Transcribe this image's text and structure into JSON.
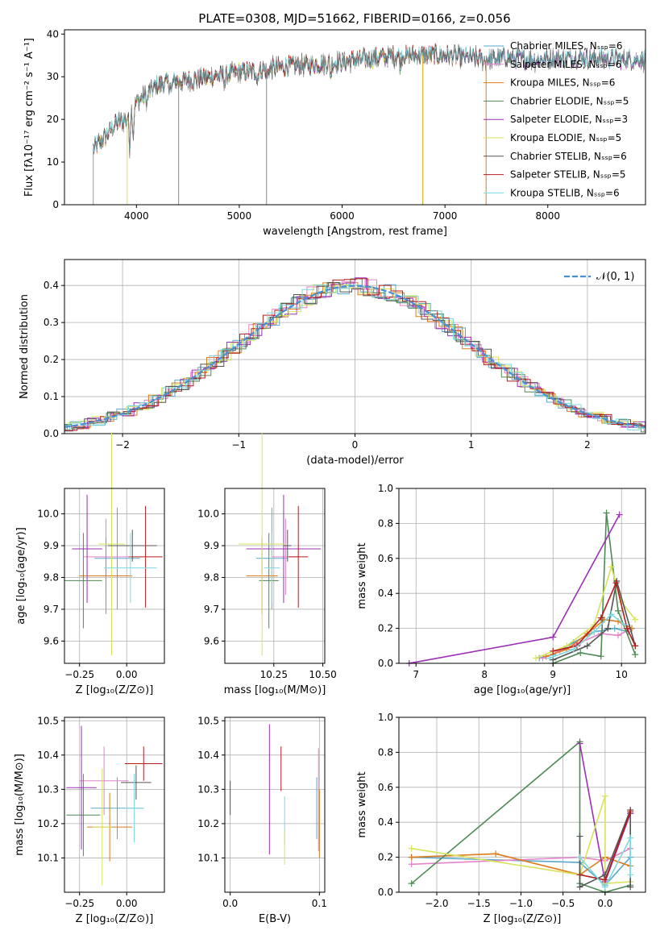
{
  "figure_title": "PLATE=0308, MJD=51662, FIBERID=0166, z=0.056",
  "chart_data": [
    {
      "id": "spectrum",
      "type": "line",
      "title": "PLATE=0308, MJD=51662, FIBERID=0166, z=0.056",
      "xlabel": "wavelength [Angstrom, rest frame]",
      "ylabel": "Flux [fλ10⁻¹⁷ erg cm⁻² s⁻¹ A⁻¹]",
      "xlim": [
        3300,
        8950
      ],
      "ylim": [
        0,
        41
      ],
      "xticks": [
        4000,
        5000,
        6000,
        7000,
        8000
      ],
      "yticks": [
        0,
        10,
        20,
        30,
        40
      ],
      "legend_position": "upper right",
      "series": [
        {
          "name": "Chabrier MILES, N_SSP=6",
          "color": "#5aa9cc"
        },
        {
          "name": "Salpeter MILES, N_SSP=6",
          "color": "#e383c9"
        },
        {
          "name": "Kroupa MILES, N_SSP=6",
          "color": "#e07b1c"
        },
        {
          "name": "Chabrier ELODIE, N_SSP=5",
          "color": "#4e8a55"
        },
        {
          "name": "Salpeter ELODIE, N_SSP=3",
          "color": "#9b30b5"
        },
        {
          "name": "Kroupa ELODIE, N_SSP=5",
          "color": "#d7e35a"
        },
        {
          "name": "Chabrier STELIB, N_SSP=6",
          "color": "#555555"
        },
        {
          "name": "Salpeter STELIB, N_SSP=5",
          "color": "#b41d1d"
        },
        {
          "name": "Kroupa STELIB, N_SSP=6",
          "color": "#7ed8e0"
        }
      ],
      "continuum": {
        "x": [
          3580,
          3700,
          3800,
          3900,
          4000,
          4100,
          4200,
          4400,
          4600,
          5000,
          5500,
          6000,
          6500,
          7000,
          7400,
          7600,
          7800,
          8000,
          8300,
          8600,
          8950
        ],
        "y": [
          13,
          16,
          19,
          20,
          24,
          26,
          28,
          29,
          29.5,
          31,
          32.5,
          33.5,
          35,
          35,
          34,
          34.5,
          34,
          34.2,
          34.5,
          34.2,
          34
        ]
      }
    },
    {
      "id": "residuals",
      "type": "step",
      "xlabel": "(data-model)/error",
      "ylabel": "Normed distribution",
      "xlim": [
        -2.5,
        2.5
      ],
      "ylim": [
        0,
        0.47
      ],
      "xticks": [
        -2,
        -1,
        0,
        1,
        2
      ],
      "yticks": [
        0.0,
        0.1,
        0.2,
        0.3,
        0.4
      ],
      "legend": [
        "𝒩(0, 1)"
      ],
      "gaussian": {
        "name": "N(0,1)",
        "color": "#4a8fd4"
      }
    },
    {
      "id": "age-vs-Z",
      "type": "errorbar",
      "xlabel": "Z [log₁₀(Z/Z⊙)]",
      "ylabel": "age  [log₁₀(age/yr)]",
      "xlim": [
        -0.33,
        0.2
      ],
      "ylim": [
        9.53,
        10.08
      ],
      "xticks": [
        -0.25,
        0.0
      ],
      "yticks": [
        9.6,
        9.7,
        9.8,
        9.9,
        10.0
      ],
      "points": [
        {
          "x": -0.05,
          "y": 9.86,
          "xerr": 0.12,
          "yerr": 0.16,
          "color": "#5aa9cc"
        },
        {
          "x": -0.11,
          "y": 9.865,
          "xerr": 0.12,
          "yerr": 0.12,
          "color": "#e383c9"
        },
        {
          "x": -0.11,
          "y": 9.805,
          "xerr": 0.14,
          "yerr": 0.12,
          "color": "#e07b1c"
        },
        {
          "x": -0.23,
          "y": 9.79,
          "xerr": 0.1,
          "yerr": 0.15,
          "color": "#4e8a55"
        },
        {
          "x": -0.21,
          "y": 9.89,
          "xerr": 0.08,
          "yerr": 0.17,
          "color": "#9b30b5"
        },
        {
          "x": -0.08,
          "y": 9.905,
          "xerr": 0.07,
          "yerr": 0.35,
          "color": "#d7e35a"
        },
        {
          "x": 0.03,
          "y": 9.9,
          "xerr": 0.13,
          "yerr": 0.05,
          "color": "#555555"
        },
        {
          "x": 0.1,
          "y": 9.865,
          "xerr": 0.09,
          "yerr": 0.16,
          "color": "#b41d1d"
        },
        {
          "x": 0.02,
          "y": 9.83,
          "xerr": 0.14,
          "yerr": 0.11,
          "color": "#7ed8e0"
        }
      ]
    },
    {
      "id": "age-vs-mass",
      "type": "errorbar",
      "xlabel": "mass [log₁₀(M/M⊙)]",
      "ylabel": "",
      "xlim": [
        10.0,
        10.51
      ],
      "ylim": [
        9.53,
        10.08
      ],
      "xticks": [
        10.25,
        10.5
      ],
      "yticks": [
        9.6,
        9.7,
        9.8,
        9.9,
        10.0
      ],
      "points": [
        {
          "x": 10.24,
          "y": 9.86,
          "xerr": 0.08,
          "yerr": 0.16,
          "color": "#5aa9cc"
        },
        {
          "x": 10.31,
          "y": 9.865,
          "xerr": 0.07,
          "yerr": 0.12,
          "color": "#e383c9"
        },
        {
          "x": 10.19,
          "y": 9.805,
          "xerr": 0.08,
          "yerr": 0.12,
          "color": "#e07b1c"
        },
        {
          "x": 10.225,
          "y": 9.79,
          "xerr": 0.05,
          "yerr": 0.15,
          "color": "#4e8a55"
        },
        {
          "x": 10.3,
          "y": 9.89,
          "xerr": 0.19,
          "yerr": 0.17,
          "color": "#9b30b5"
        },
        {
          "x": 10.19,
          "y": 9.905,
          "xerr": 0.12,
          "yerr": 0.35,
          "color": "#d7e35a"
        },
        {
          "x": 10.32,
          "y": 9.9,
          "xerr": 0.02,
          "yerr": 0.05,
          "color": "#555555"
        },
        {
          "x": 10.375,
          "y": 9.865,
          "xerr": 0.05,
          "yerr": 0.16,
          "color": "#b41d1d"
        },
        {
          "x": 10.24,
          "y": 9.83,
          "xerr": 0.04,
          "yerr": 0.11,
          "color": "#7ed8e0"
        }
      ]
    },
    {
      "id": "weight-vs-age",
      "type": "line",
      "xlabel": "age  [log₁₀(age/yr)]",
      "ylabel": "mass weight",
      "xlim": [
        6.75,
        10.35
      ],
      "ylim": [
        0,
        1.0
      ],
      "xticks": [
        7,
        8,
        9,
        10
      ],
      "yticks": [
        0.0,
        0.2,
        0.4,
        0.6,
        0.8,
        1.0
      ],
      "series": [
        {
          "color": "#5aa9cc",
          "x": [
            8.8,
            9.0,
            9.3,
            9.6,
            9.9,
            10.1
          ],
          "y": [
            0.03,
            0.05,
            0.12,
            0.18,
            0.2,
            0.18
          ]
        },
        {
          "color": "#e383c9",
          "x": [
            8.85,
            9.1,
            9.4,
            9.7,
            9.95,
            10.15
          ],
          "y": [
            0.03,
            0.07,
            0.12,
            0.17,
            0.16,
            0.2
          ]
        },
        {
          "color": "#e07b1c",
          "x": [
            8.9,
            9.2,
            9.5,
            9.75,
            9.95,
            10.15
          ],
          "y": [
            0.04,
            0.08,
            0.17,
            0.25,
            0.24,
            0.2
          ]
        },
        {
          "color": "#4e8a55",
          "x": [
            9.0,
            9.4,
            9.7,
            9.78,
            9.95,
            10.2
          ],
          "y": [
            0.0,
            0.06,
            0.04,
            0.86,
            0.3,
            0.05
          ]
        },
        {
          "color": "#9b30b5",
          "x": [
            6.9,
            9.0,
            9.97
          ],
          "y": [
            0.0,
            0.15,
            0.85
          ]
        },
        {
          "color": "#d7e35a",
          "x": [
            8.75,
            9.2,
            9.6,
            9.85,
            10.0,
            10.2
          ],
          "y": [
            0.03,
            0.1,
            0.22,
            0.55,
            0.35,
            0.25
          ]
        },
        {
          "color": "#555555",
          "x": [
            9.0,
            9.5,
            9.8,
            9.93,
            10.2
          ],
          "y": [
            0.02,
            0.1,
            0.2,
            0.47,
            0.1
          ]
        },
        {
          "color": "#b41d1d",
          "x": [
            9.0,
            9.35,
            9.7,
            9.92,
            10.08,
            10.2
          ],
          "y": [
            0.07,
            0.1,
            0.26,
            0.46,
            0.2,
            0.1
          ]
        },
        {
          "color": "#7ed8e0",
          "x": [
            8.95,
            9.3,
            9.6,
            9.85,
            10.05
          ],
          "y": [
            0.03,
            0.08,
            0.18,
            0.28,
            0.22
          ]
        }
      ]
    },
    {
      "id": "mass-vs-Z",
      "type": "errorbar",
      "xlabel": "Z [log₁₀(Z/Z⊙)]",
      "ylabel": "mass [log₁₀(M/M⊙)]",
      "xlim": [
        -0.33,
        0.2
      ],
      "ylim": [
        10.0,
        10.51
      ],
      "xticks": [
        -0.25,
        0.0
      ],
      "yticks": [
        10.1,
        10.2,
        10.3,
        10.4,
        10.5
      ],
      "points": [
        {
          "x": -0.05,
          "y": 10.245,
          "xerr": 0.14,
          "yerr": 0.09,
          "color": "#5aa9cc"
        },
        {
          "x": -0.12,
          "y": 10.325,
          "xerr": 0.13,
          "yerr": 0.1,
          "color": "#e383c9"
        },
        {
          "x": -0.09,
          "y": 10.19,
          "xerr": 0.12,
          "yerr": 0.1,
          "color": "#e07b1c"
        },
        {
          "x": -0.23,
          "y": 10.225,
          "xerr": 0.09,
          "yerr": 0.12,
          "color": "#4e8a55"
        },
        {
          "x": -0.24,
          "y": 10.305,
          "xerr": 0.08,
          "yerr": 0.18,
          "color": "#9b30b5"
        },
        {
          "x": -0.13,
          "y": 10.19,
          "xerr": 0.05,
          "yerr": 0.17,
          "color": "#d7e35a"
        },
        {
          "x": 0.05,
          "y": 10.32,
          "xerr": 0.08,
          "yerr": 0.05,
          "color": "#555555"
        },
        {
          "x": 0.09,
          "y": 10.375,
          "xerr": 0.1,
          "yerr": 0.05,
          "color": "#b41d1d"
        },
        {
          "x": 0.04,
          "y": 10.245,
          "xerr": 0.05,
          "yerr": 0.1,
          "color": "#7ed8e0"
        }
      ]
    },
    {
      "id": "mass-vs-EBV",
      "type": "errorbar",
      "xlabel": "E(B-V)",
      "ylabel": "",
      "xlim": [
        -0.006,
        0.106
      ],
      "ylim": [
        10.0,
        10.51
      ],
      "xticks": [
        0.0,
        0.1
      ],
      "yticks": [
        10.1,
        10.2,
        10.3,
        10.4,
        10.5
      ],
      "points": [
        {
          "x": 0.0,
          "y": 10.275,
          "xerr": 0,
          "yerr": 0.05,
          "color": "#555555"
        },
        {
          "x": 0.044,
          "y": 10.3,
          "xerr": 0,
          "yerr": 0.19,
          "color": "#9b30b5"
        },
        {
          "x": 0.057,
          "y": 10.36,
          "xerr": 0,
          "yerr": 0.065,
          "color": "#b41d1d"
        },
        {
          "x": 0.061,
          "y": 10.21,
          "xerr": 0,
          "yerr": 0.07,
          "color": "#7ed8e0"
        },
        {
          "x": 0.061,
          "y": 10.13,
          "xerr": 0,
          "yerr": 0.05,
          "color": "#d7e35a"
        },
        {
          "x": 0.097,
          "y": 10.245,
          "xerr": 0,
          "yerr": 0.09,
          "color": "#5aa9cc"
        },
        {
          "x": 0.099,
          "y": 10.27,
          "xerr": 0,
          "yerr": 0.15,
          "color": "#e383c9"
        },
        {
          "x": 0.1,
          "y": 10.2,
          "xerr": 0,
          "yerr": 0.1,
          "color": "#e07b1c"
        }
      ]
    },
    {
      "id": "weight-vs-Z",
      "type": "line",
      "xlabel": "Z [log₁₀(Z/Z⊙)]",
      "ylabel": "mass weight",
      "xlim": [
        -2.45,
        0.48
      ],
      "ylim": [
        0,
        1.0
      ],
      "xticks": [
        -2.0,
        -1.5,
        -1.0,
        -0.5,
        0.0
      ],
      "yticks": [
        0.0,
        0.2,
        0.4,
        0.6,
        0.8,
        1.0
      ],
      "series": [
        {
          "color": "#5aa9cc",
          "x": [
            -2.3,
            -0.3,
            0.0,
            0.3
          ],
          "y": [
            0.2,
            0.17,
            0.04,
            0.2
          ]
        },
        {
          "color": "#e383c9",
          "x": [
            -2.3,
            -0.3,
            0.0,
            0.3
          ],
          "y": [
            0.16,
            0.2,
            0.18,
            0.25
          ]
        },
        {
          "color": "#e07b1c",
          "x": [
            -2.3,
            -1.3,
            -0.3,
            0.0,
            0.3
          ],
          "y": [
            0.2,
            0.22,
            0.1,
            0.2,
            0.15
          ]
        },
        {
          "color": "#4e8a55",
          "x": [
            -2.3,
            -0.3,
            -0.3,
            0.0,
            0.3
          ],
          "y": [
            0.05,
            0.86,
            0.05,
            0.0,
            0.04
          ]
        },
        {
          "color": "#9b30b5",
          "x": [
            -0.3,
            0.0,
            0.3
          ],
          "y": [
            0.85,
            0.06,
            0.45
          ]
        },
        {
          "color": "#d7e35a",
          "x": [
            -2.3,
            -0.3,
            0.0,
            0.0,
            0.3
          ],
          "y": [
            0.25,
            0.1,
            0.55,
            0.05,
            0.06
          ]
        },
        {
          "color": "#555555",
          "x": [
            -0.3,
            -0.3,
            0.0,
            0.3,
            0.3
          ],
          "y": [
            0.32,
            0.03,
            0.1,
            0.47,
            0.03
          ]
        },
        {
          "color": "#b41d1d",
          "x": [
            -0.3,
            0.0,
            0.3
          ],
          "y": [
            0.1,
            0.07,
            0.46
          ]
        },
        {
          "color": "#7ed8e0",
          "x": [
            -0.3,
            0.0,
            0.3,
            0.3
          ],
          "y": [
            0.2,
            0.03,
            0.31,
            0.1
          ]
        }
      ]
    }
  ]
}
